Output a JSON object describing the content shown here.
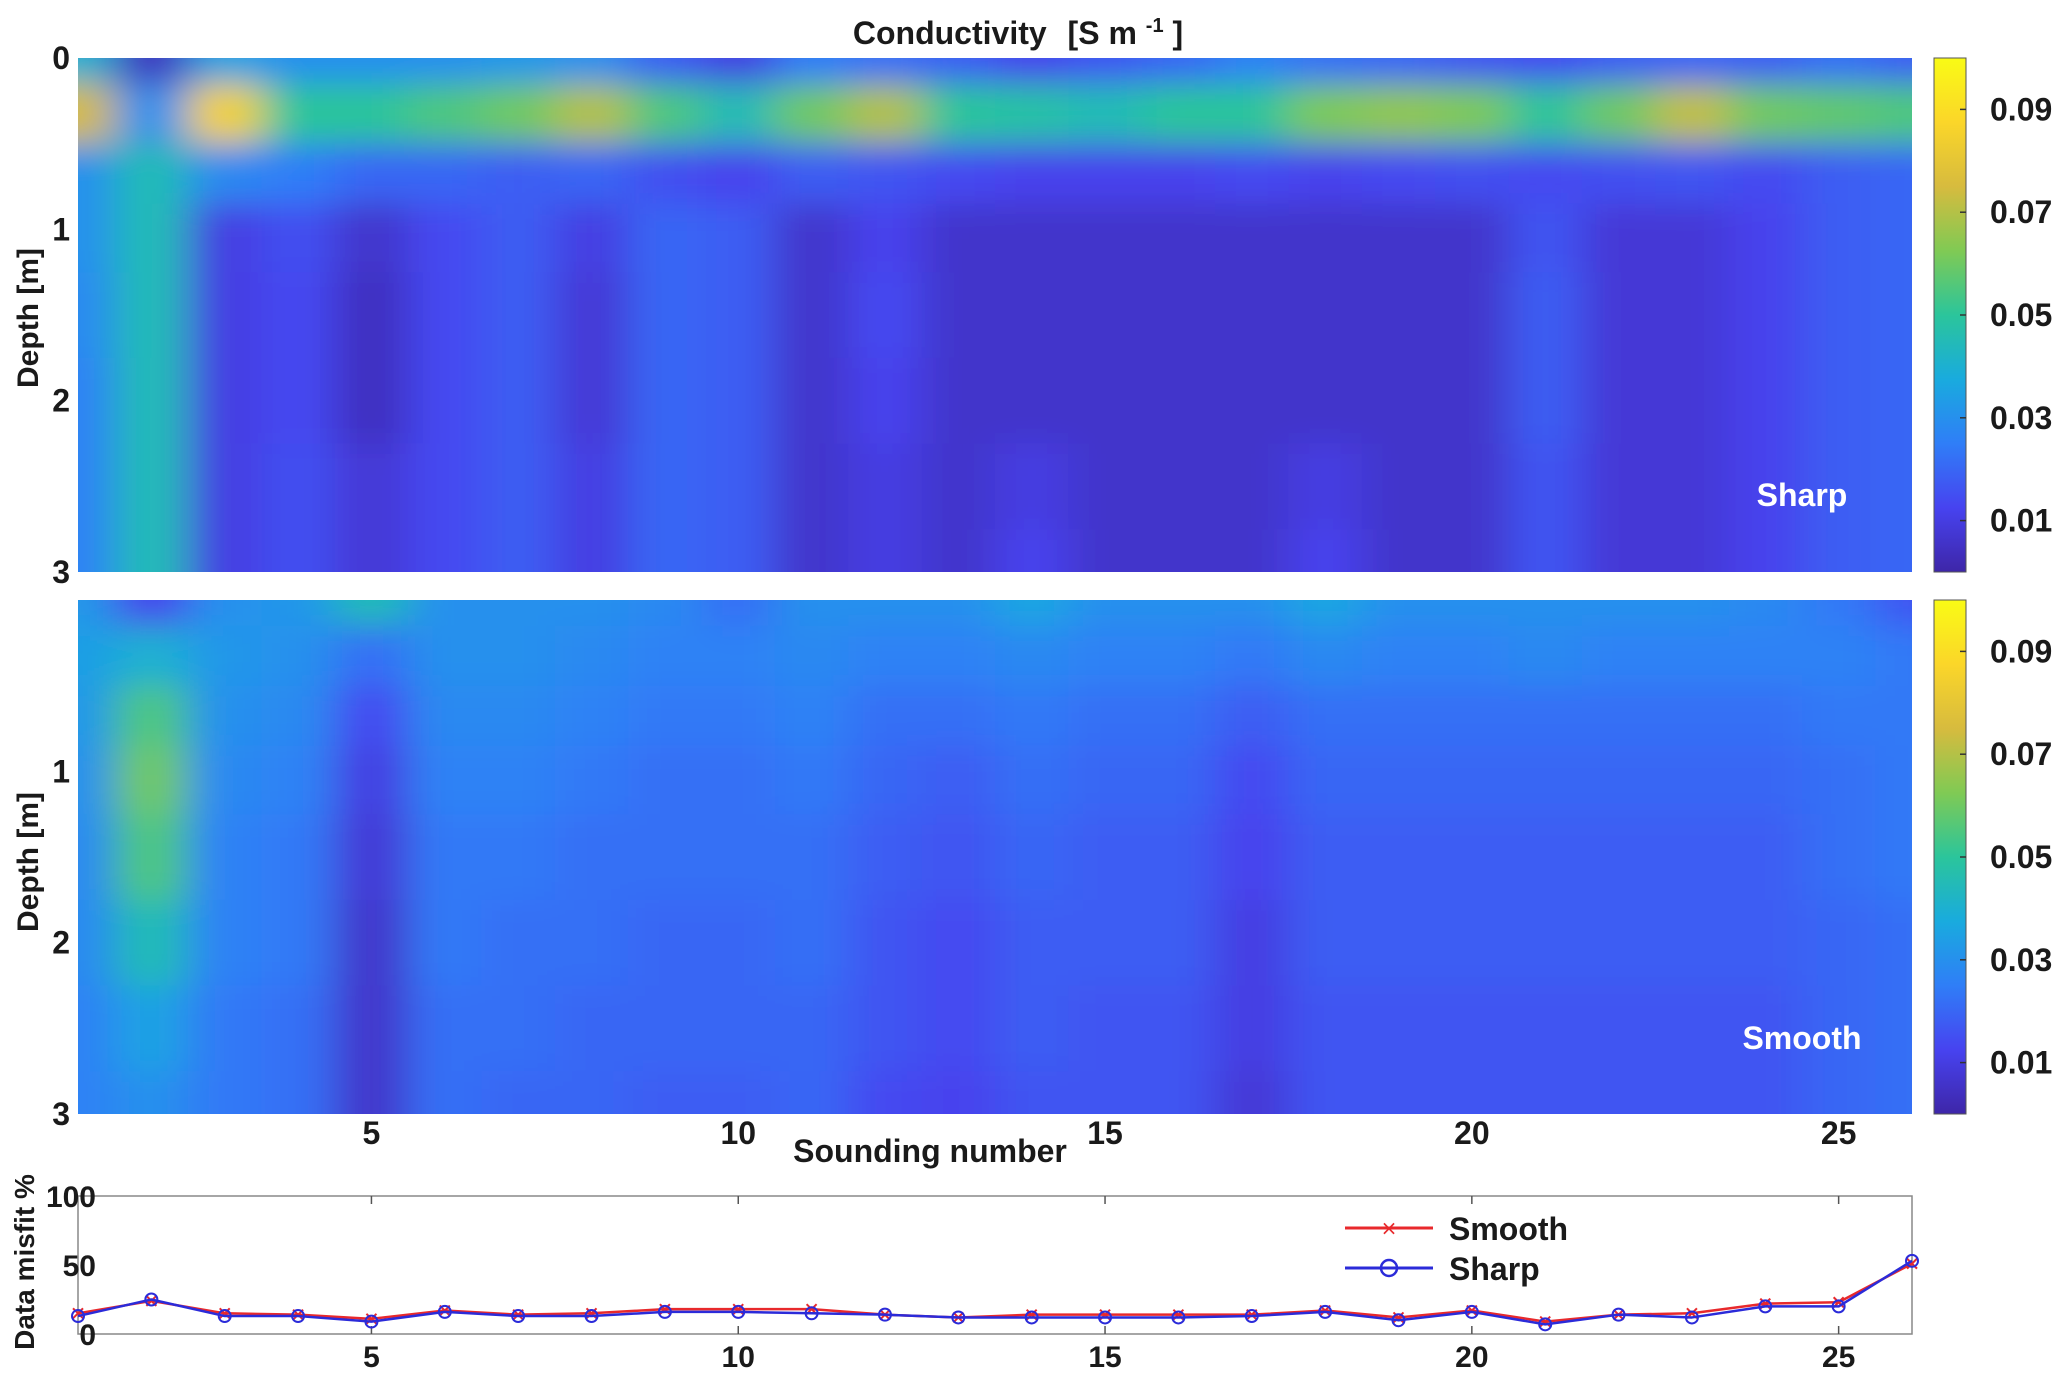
{
  "figure": {
    "title": "Conductivity",
    "title_unit": "[S m",
    "title_unit_sup": "-1",
    "title_unit_close": "]"
  },
  "colormap": [
    "#3e26a8",
    "#4743f0",
    "#2f7ef7",
    "#19abde",
    "#2bc59b",
    "#80ca54",
    "#d7bb3e",
    "#fbd629",
    "#f9fb15"
  ],
  "chart_data": [
    {
      "type": "heatmap",
      "title": "Conductivity [S m-1]",
      "panel_label": "Sharp",
      "ylabel": "Depth [m]",
      "yticks": [
        0,
        1,
        2,
        3
      ],
      "ylim": [
        0,
        3
      ],
      "y_reversed": true,
      "xlim": [
        1,
        26
      ],
      "colorbar_ticks": [
        "0.09",
        "0.07",
        "0.05",
        "0.03",
        "0.01"
      ],
      "colorbar_tick_values": [
        0.09,
        0.07,
        0.05,
        0.03,
        0.01
      ],
      "clim": [
        0,
        0.1
      ],
      "depths": [
        0,
        0.3,
        0.7,
        1.0,
        1.5,
        2.0,
        2.5,
        3.0
      ],
      "soundings": [
        1,
        2,
        3,
        4,
        5,
        6,
        7,
        8,
        9,
        10,
        11,
        12,
        13,
        14,
        15,
        16,
        17,
        18,
        19,
        20,
        21,
        22,
        23,
        24,
        25,
        26
      ],
      "values": [
        [
          0.04,
          0.004,
          0.035,
          0.03,
          0.03,
          0.03,
          0.032,
          0.03,
          0.018,
          0.01,
          0.025,
          0.022,
          0.018,
          0.012,
          0.016,
          0.02,
          0.026,
          0.022,
          0.02,
          0.016,
          0.014,
          0.018,
          0.02,
          0.018,
          0.022,
          0.018
        ],
        [
          0.075,
          0.03,
          0.085,
          0.05,
          0.05,
          0.055,
          0.06,
          0.07,
          0.055,
          0.045,
          0.06,
          0.07,
          0.05,
          0.048,
          0.045,
          0.05,
          0.05,
          0.062,
          0.065,
          0.062,
          0.05,
          0.06,
          0.072,
          0.06,
          0.058,
          0.055
        ],
        [
          0.03,
          0.045,
          0.028,
          0.025,
          0.02,
          0.02,
          0.018,
          0.02,
          0.015,
          0.012,
          0.018,
          0.016,
          0.014,
          0.012,
          0.012,
          0.012,
          0.014,
          0.012,
          0.014,
          0.015,
          0.014,
          0.015,
          0.016,
          0.014,
          0.018,
          0.02
        ],
        [
          0.03,
          0.045,
          0.01,
          0.015,
          0.006,
          0.014,
          0.018,
          0.01,
          0.02,
          0.018,
          0.006,
          0.012,
          0.006,
          0.006,
          0.006,
          0.006,
          0.006,
          0.006,
          0.006,
          0.006,
          0.016,
          0.008,
          0.008,
          0.012,
          0.018,
          0.02
        ],
        [
          0.028,
          0.045,
          0.01,
          0.014,
          0.004,
          0.014,
          0.018,
          0.008,
          0.02,
          0.018,
          0.006,
          0.014,
          0.006,
          0.006,
          0.006,
          0.006,
          0.006,
          0.006,
          0.006,
          0.006,
          0.018,
          0.008,
          0.008,
          0.012,
          0.018,
          0.02
        ],
        [
          0.026,
          0.045,
          0.01,
          0.014,
          0.004,
          0.014,
          0.018,
          0.008,
          0.02,
          0.018,
          0.006,
          0.012,
          0.006,
          0.006,
          0.006,
          0.006,
          0.006,
          0.006,
          0.006,
          0.006,
          0.018,
          0.008,
          0.008,
          0.012,
          0.018,
          0.02
        ],
        [
          0.026,
          0.045,
          0.01,
          0.015,
          0.008,
          0.014,
          0.018,
          0.01,
          0.02,
          0.018,
          0.006,
          0.01,
          0.006,
          0.01,
          0.006,
          0.006,
          0.006,
          0.01,
          0.006,
          0.006,
          0.016,
          0.008,
          0.008,
          0.012,
          0.018,
          0.02
        ],
        [
          0.026,
          0.045,
          0.01,
          0.015,
          0.008,
          0.014,
          0.018,
          0.01,
          0.02,
          0.018,
          0.006,
          0.01,
          0.006,
          0.012,
          0.006,
          0.006,
          0.006,
          0.012,
          0.006,
          0.006,
          0.016,
          0.008,
          0.008,
          0.012,
          0.018,
          0.02
        ]
      ]
    },
    {
      "type": "heatmap",
      "panel_label": "Smooth",
      "ylabel": "Depth [m]",
      "xlabel": "Sounding number",
      "yticks": [
        1,
        2,
        3
      ],
      "ylim": [
        0,
        3
      ],
      "y_reversed": true,
      "xlim": [
        1,
        26
      ],
      "xticks": [
        5,
        10,
        15,
        20,
        25
      ],
      "colorbar_ticks": [
        "0.09",
        "0.07",
        "0.05",
        "0.03",
        "0.01"
      ],
      "colorbar_tick_values": [
        0.09,
        0.07,
        0.05,
        0.03,
        0.01
      ],
      "clim": [
        0,
        0.1
      ],
      "depths": [
        0,
        0.3,
        0.7,
        1.0,
        1.5,
        2.0,
        2.5,
        3.0
      ],
      "soundings": [
        1,
        2,
        3,
        4,
        5,
        6,
        7,
        8,
        9,
        10,
        11,
        12,
        13,
        14,
        15,
        16,
        17,
        18,
        19,
        20,
        21,
        22,
        23,
        24,
        25,
        26
      ],
      "values": [
        [
          0.032,
          0.012,
          0.03,
          0.032,
          0.045,
          0.03,
          0.03,
          0.03,
          0.028,
          0.022,
          0.03,
          0.03,
          0.03,
          0.036,
          0.03,
          0.03,
          0.03,
          0.036,
          0.03,
          0.03,
          0.03,
          0.03,
          0.03,
          0.028,
          0.024,
          0.016
        ],
        [
          0.034,
          0.04,
          0.032,
          0.03,
          0.022,
          0.03,
          0.03,
          0.028,
          0.026,
          0.026,
          0.028,
          0.026,
          0.026,
          0.028,
          0.026,
          0.026,
          0.024,
          0.028,
          0.026,
          0.026,
          0.028,
          0.026,
          0.026,
          0.026,
          0.026,
          0.024
        ],
        [
          0.032,
          0.055,
          0.03,
          0.028,
          0.014,
          0.028,
          0.028,
          0.026,
          0.024,
          0.024,
          0.026,
          0.022,
          0.022,
          0.024,
          0.022,
          0.022,
          0.018,
          0.022,
          0.022,
          0.022,
          0.022,
          0.022,
          0.022,
          0.022,
          0.024,
          0.024
        ],
        [
          0.03,
          0.06,
          0.028,
          0.026,
          0.01,
          0.026,
          0.026,
          0.024,
          0.022,
          0.022,
          0.024,
          0.02,
          0.018,
          0.022,
          0.02,
          0.02,
          0.014,
          0.02,
          0.02,
          0.02,
          0.02,
          0.02,
          0.02,
          0.02,
          0.022,
          0.024
        ],
        [
          0.028,
          0.055,
          0.026,
          0.024,
          0.008,
          0.024,
          0.024,
          0.022,
          0.022,
          0.022,
          0.022,
          0.018,
          0.016,
          0.02,
          0.018,
          0.018,
          0.012,
          0.018,
          0.018,
          0.018,
          0.018,
          0.018,
          0.018,
          0.018,
          0.022,
          0.024
        ],
        [
          0.028,
          0.045,
          0.026,
          0.024,
          0.006,
          0.024,
          0.022,
          0.022,
          0.02,
          0.02,
          0.022,
          0.016,
          0.014,
          0.018,
          0.018,
          0.018,
          0.01,
          0.018,
          0.018,
          0.018,
          0.018,
          0.018,
          0.018,
          0.018,
          0.02,
          0.022
        ],
        [
          0.026,
          0.035,
          0.024,
          0.022,
          0.006,
          0.022,
          0.022,
          0.02,
          0.02,
          0.02,
          0.02,
          0.016,
          0.014,
          0.018,
          0.016,
          0.016,
          0.01,
          0.016,
          0.016,
          0.016,
          0.016,
          0.016,
          0.016,
          0.016,
          0.02,
          0.022
        ],
        [
          0.026,
          0.03,
          0.024,
          0.022,
          0.006,
          0.022,
          0.02,
          0.02,
          0.018,
          0.018,
          0.02,
          0.014,
          0.012,
          0.016,
          0.016,
          0.016,
          0.008,
          0.016,
          0.016,
          0.016,
          0.016,
          0.016,
          0.016,
          0.016,
          0.02,
          0.022
        ]
      ]
    },
    {
      "type": "line",
      "ylabel": "Data misfit %",
      "xlim": [
        1,
        26
      ],
      "ylim": [
        0,
        100
      ],
      "yticks": [
        0,
        50,
        100
      ],
      "xticks": [
        5,
        10,
        15,
        20,
        25
      ],
      "legend_position": "top-right",
      "x": [
        1,
        2,
        3,
        4,
        5,
        6,
        7,
        8,
        9,
        10,
        11,
        12,
        13,
        14,
        15,
        16,
        17,
        18,
        19,
        20,
        21,
        22,
        23,
        24,
        25,
        26
      ],
      "series": [
        {
          "name": "Smooth",
          "color": "#e8292c",
          "marker": "x",
          "values": [
            15,
            24,
            15,
            14,
            11,
            17,
            14,
            15,
            18,
            18,
            18,
            14,
            12,
            14,
            14,
            14,
            14,
            17,
            12,
            17,
            9,
            14,
            15,
            22,
            23,
            51
          ]
        },
        {
          "name": "Sharp",
          "color": "#2b2bd9",
          "marker": "o",
          "values": [
            13,
            25,
            13,
            13,
            9,
            16,
            13,
            13,
            16,
            16,
            15,
            14,
            12,
            12,
            12,
            12,
            13,
            16,
            10,
            16,
            7,
            14,
            12,
            20,
            20,
            53
          ]
        }
      ]
    }
  ]
}
